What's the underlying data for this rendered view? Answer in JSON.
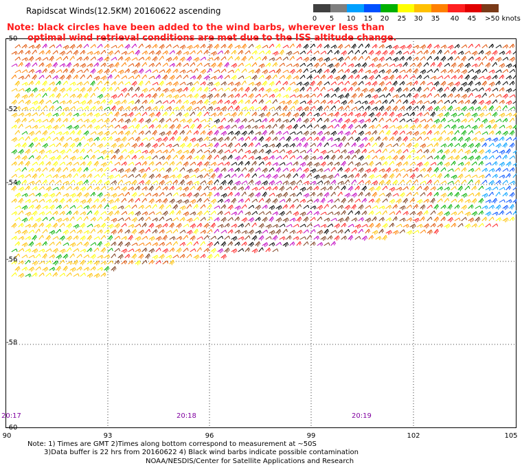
{
  "header": {
    "title": "Rapidscat Winds(12.5KM) 20160622 ascending"
  },
  "legend": {
    "colors": [
      "#404040",
      "#7f7f7f",
      "#00a0ff",
      "#0050ff",
      "#00b000",
      "#ffff00",
      "#ffc000",
      "#ff8000",
      "#ff2020",
      "#e00000",
      "#7a3a18",
      "#c000c0",
      "#ff00ff",
      "#400080",
      "#600060"
    ],
    "labels": [
      "0",
      "5",
      "10",
      "15",
      "20",
      "25",
      "30",
      "35",
      "40",
      "45",
      ">50 knots"
    ]
  },
  "note": {
    "line1": "Note: black circles have been added to the wind barbs, wherever less than",
    "line2": "optimal wind retrieval conditions are met due to the ISS altitude change."
  },
  "axes": {
    "lat_labels": [
      "-50",
      "-52",
      "-54",
      "-56",
      "-58",
      "-60"
    ],
    "lon_labels": [
      "90",
      "93",
      "96",
      "99",
      "102",
      "105"
    ]
  },
  "times": [
    "20:17",
    "20:18",
    "20:19"
  ],
  "footer": {
    "line1": "Note: 1) Times are GMT 2)Times along bottom correspond to measurement at ~50S",
    "line2": "3)Data buffer is 22 hrs from 20160622 4) Black wind barbs indicate possible contamination",
    "line3": "NOAA/NESDIS/Center for Satellite Applications and Research"
  }
}
